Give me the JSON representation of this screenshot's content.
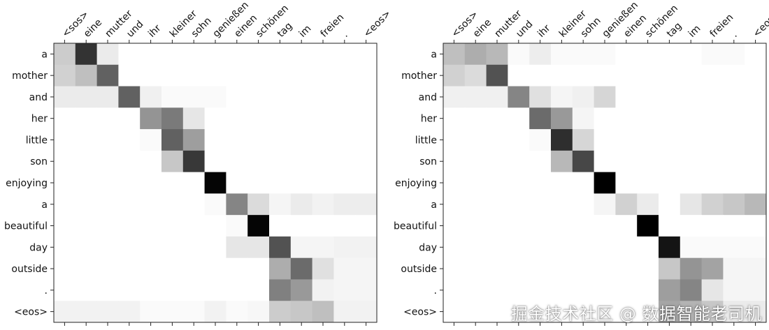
{
  "chart_data": [
    {
      "type": "heatmap",
      "title": "",
      "xlabel": "",
      "ylabel": "",
      "x_tick_labels": [
        "<sos>",
        "eine",
        "mutter",
        "und",
        "ihr",
        "kleiner",
        "sohn",
        "genießen",
        "einen",
        "schönen",
        "tag",
        "im",
        "freien",
        ".",
        "<eos>"
      ],
      "y_tick_labels": [
        "a",
        "mother",
        "and",
        "her",
        "little",
        "son",
        "enjoying",
        "a",
        "beautiful",
        "day",
        "outside",
        ".",
        "<eos>"
      ],
      "colormap": "grayscale (white = low, black = high)",
      "values": [
        [
          0.2,
          0.8,
          0.08,
          0.0,
          0.0,
          0.0,
          0.0,
          0.0,
          0.0,
          0.0,
          0.0,
          0.0,
          0.0,
          0.0,
          0.0
        ],
        [
          0.18,
          0.25,
          0.62,
          0.0,
          0.0,
          0.0,
          0.0,
          0.0,
          0.0,
          0.0,
          0.0,
          0.0,
          0.0,
          0.0,
          0.0
        ],
        [
          0.08,
          0.08,
          0.08,
          0.62,
          0.06,
          0.02,
          0.02,
          0.02,
          0.0,
          0.0,
          0.0,
          0.0,
          0.0,
          0.0,
          0.0
        ],
        [
          0.0,
          0.0,
          0.0,
          0.0,
          0.42,
          0.52,
          0.1,
          0.0,
          0.0,
          0.0,
          0.0,
          0.0,
          0.0,
          0.0,
          0.0
        ],
        [
          0.0,
          0.0,
          0.0,
          0.0,
          0.02,
          0.62,
          0.38,
          0.0,
          0.0,
          0.0,
          0.0,
          0.0,
          0.0,
          0.0,
          0.0
        ],
        [
          0.0,
          0.0,
          0.0,
          0.0,
          0.0,
          0.22,
          0.78,
          0.0,
          0.0,
          0.0,
          0.0,
          0.0,
          0.0,
          0.0,
          0.0
        ],
        [
          0.0,
          0.0,
          0.0,
          0.0,
          0.0,
          0.0,
          0.0,
          0.98,
          0.0,
          0.0,
          0.0,
          0.0,
          0.0,
          0.0,
          0.0
        ],
        [
          0.0,
          0.0,
          0.0,
          0.0,
          0.0,
          0.0,
          0.0,
          0.02,
          0.48,
          0.14,
          0.04,
          0.08,
          0.05,
          0.07,
          0.07
        ],
        [
          0.0,
          0.0,
          0.0,
          0.0,
          0.0,
          0.0,
          0.0,
          0.0,
          0.02,
          0.98,
          0.0,
          0.0,
          0.0,
          0.0,
          0.0
        ],
        [
          0.0,
          0.0,
          0.0,
          0.0,
          0.0,
          0.0,
          0.0,
          0.0,
          0.1,
          0.1,
          0.68,
          0.04,
          0.04,
          0.05,
          0.05
        ],
        [
          0.0,
          0.0,
          0.0,
          0.0,
          0.0,
          0.0,
          0.0,
          0.0,
          0.0,
          0.0,
          0.32,
          0.58,
          0.12,
          0.04,
          0.04
        ],
        [
          0.0,
          0.0,
          0.0,
          0.0,
          0.0,
          0.0,
          0.0,
          0.0,
          0.0,
          0.0,
          0.5,
          0.4,
          0.05,
          0.04,
          0.04
        ],
        [
          0.05,
          0.05,
          0.05,
          0.05,
          0.02,
          0.02,
          0.02,
          0.05,
          0.02,
          0.03,
          0.2,
          0.22,
          0.25,
          0.05,
          0.05
        ]
      ]
    },
    {
      "type": "heatmap",
      "title": "",
      "xlabel": "",
      "ylabel": "",
      "x_tick_labels": [
        "<sos>",
        "eine",
        "mutter",
        "und",
        "ihr",
        "kleiner",
        "sohn",
        "genießen",
        "einen",
        "schönen",
        "tag",
        "im",
        "freien",
        ".",
        "<eos>"
      ],
      "y_tick_labels": [
        "a",
        "mother",
        "and",
        "her",
        "little",
        "son",
        "enjoying",
        "a",
        "beautiful",
        "day",
        "outside",
        ".",
        "<eos>"
      ],
      "colormap": "grayscale (white = low, black = high)",
      "values": [
        [
          0.25,
          0.32,
          0.28,
          0.02,
          0.07,
          0.02,
          0.02,
          0.02,
          0.0,
          0.0,
          0.0,
          0.0,
          0.02,
          0.02,
          0.0
        ],
        [
          0.18,
          0.14,
          0.68,
          0.0,
          0.0,
          0.0,
          0.0,
          0.0,
          0.0,
          0.0,
          0.0,
          0.0,
          0.0,
          0.0,
          0.0
        ],
        [
          0.06,
          0.06,
          0.06,
          0.48,
          0.12,
          0.04,
          0.06,
          0.16,
          0.0,
          0.0,
          0.0,
          0.0,
          0.0,
          0.0,
          0.0
        ],
        [
          0.0,
          0.0,
          0.0,
          0.0,
          0.58,
          0.4,
          0.04,
          0.0,
          0.0,
          0.0,
          0.0,
          0.0,
          0.0,
          0.0,
          0.0
        ],
        [
          0.0,
          0.0,
          0.0,
          0.0,
          0.02,
          0.82,
          0.16,
          0.0,
          0.0,
          0.0,
          0.0,
          0.0,
          0.0,
          0.0,
          0.0
        ],
        [
          0.0,
          0.0,
          0.0,
          0.0,
          0.0,
          0.28,
          0.72,
          0.0,
          0.0,
          0.0,
          0.0,
          0.0,
          0.0,
          0.0,
          0.0
        ],
        [
          0.0,
          0.0,
          0.0,
          0.0,
          0.0,
          0.0,
          0.0,
          1.0,
          0.0,
          0.0,
          0.0,
          0.0,
          0.0,
          0.0,
          0.0
        ],
        [
          0.0,
          0.0,
          0.0,
          0.0,
          0.0,
          0.0,
          0.0,
          0.04,
          0.18,
          0.08,
          0.0,
          0.1,
          0.18,
          0.22,
          0.28
        ],
        [
          0.0,
          0.0,
          0.0,
          0.0,
          0.0,
          0.0,
          0.0,
          0.0,
          0.0,
          1.0,
          0.0,
          0.0,
          0.0,
          0.0,
          0.0
        ],
        [
          0.0,
          0.0,
          0.0,
          0.0,
          0.0,
          0.0,
          0.0,
          0.0,
          0.0,
          0.0,
          0.92,
          0.02,
          0.02,
          0.02,
          0.02
        ],
        [
          0.0,
          0.0,
          0.0,
          0.0,
          0.0,
          0.0,
          0.0,
          0.0,
          0.0,
          0.0,
          0.22,
          0.42,
          0.36,
          0.04,
          0.04
        ],
        [
          0.0,
          0.0,
          0.0,
          0.0,
          0.0,
          0.0,
          0.0,
          0.0,
          0.0,
          0.0,
          0.38,
          0.48,
          0.1,
          0.04,
          0.04
        ],
        [
          0.0,
          0.0,
          0.0,
          0.0,
          0.0,
          0.0,
          0.0,
          0.0,
          0.0,
          0.0,
          0.35,
          0.3,
          0.22,
          0.08,
          0.08
        ]
      ]
    }
  ],
  "watermark": "掘金技术社区 @ 数据智能老司机"
}
